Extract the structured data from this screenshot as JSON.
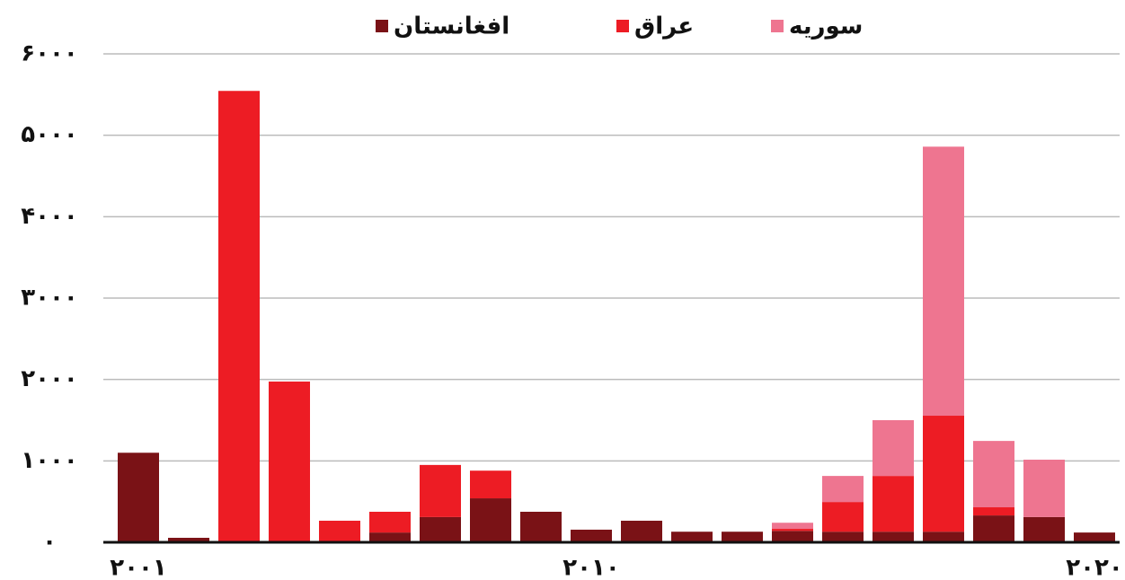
{
  "chart_data": {
    "type": "stacked_bar",
    "categories": [
      "۲۰۰۱",
      null,
      null,
      null,
      null,
      null,
      null,
      null,
      null,
      "۲۰۱۰",
      null,
      null,
      null,
      null,
      null,
      null,
      null,
      null,
      null,
      "۲۰۲۰"
    ],
    "series": [
      {
        "name": "افغانستان",
        "color": "#7a1216",
        "values": [
          1100,
          55,
          0,
          0,
          0,
          120,
          310,
          540,
          375,
          155,
          265,
          130,
          130,
          140,
          130,
          130,
          130,
          330,
          310,
          120
        ]
      },
      {
        "name": "عراق",
        "color": "#ed1c24",
        "values": [
          0,
          0,
          5545,
          1975,
          265,
          255,
          640,
          340,
          0,
          0,
          0,
          0,
          0,
          25,
          365,
          685,
          1425,
          100,
          0,
          0
        ]
      },
      {
        "name": "سوریه",
        "color": "#ee7590",
        "values": [
          0,
          0,
          0,
          0,
          0,
          0,
          0,
          0,
          0,
          0,
          0,
          0,
          0,
          75,
          320,
          685,
          3305,
          815,
          705,
          0
        ]
      }
    ],
    "ylim": [
      0,
      6000
    ],
    "yticks": [
      {
        "value": 0,
        "label": "۰"
      },
      {
        "value": 1000,
        "label": "۱۰۰۰"
      },
      {
        "value": 2000,
        "label": "۲۰۰۰"
      },
      {
        "value": 3000,
        "label": "۳۰۰۰"
      },
      {
        "value": 4000,
        "label": "۴۰۰۰"
      },
      {
        "value": 5000,
        "label": "۵۰۰۰"
      },
      {
        "value": 6000,
        "label": "۶۰۰۰"
      }
    ],
    "grid": true,
    "legend": "top"
  }
}
